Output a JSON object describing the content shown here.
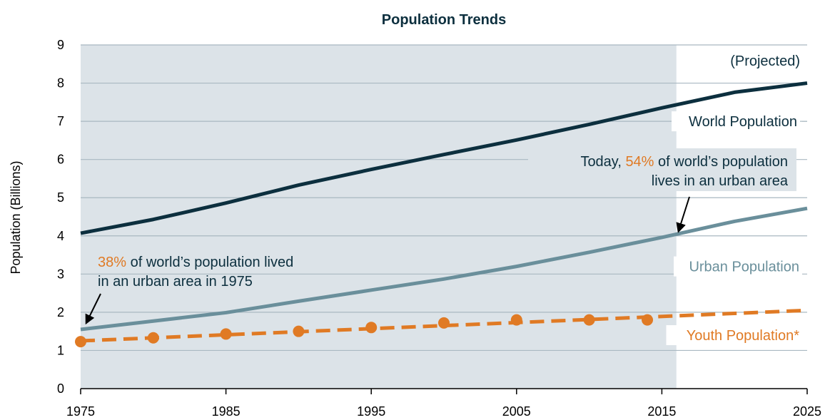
{
  "chart_data": {
    "type": "line",
    "title": "Population Trends",
    "xlabel": "",
    "ylabel": "Population (Billions)",
    "xlim": [
      1975,
      2025
    ],
    "ylim": [
      0,
      9
    ],
    "x_ticks": [
      "1975",
      "1985",
      "1995",
      "2005",
      "2015",
      "2025"
    ],
    "y_ticks": [
      "0",
      "1",
      "2",
      "3",
      "4",
      "5",
      "6",
      "7",
      "8",
      "9"
    ],
    "grid": "horizontal",
    "shaded_region": {
      "from": 1975,
      "to": 2016
    },
    "projected_label": "(Projected)",
    "series": [
      {
        "name": "World Population",
        "color": "#0c2f3e",
        "style": "solid",
        "x": [
          1975,
          1980,
          1985,
          1990,
          1995,
          2000,
          2005,
          2010,
          2015,
          2020,
          2025
        ],
        "values": [
          4.07,
          4.43,
          4.86,
          5.33,
          5.74,
          6.13,
          6.51,
          6.92,
          7.35,
          7.76,
          8.0
        ]
      },
      {
        "name": "Urban Population",
        "color": "#6a8f9b",
        "style": "solid",
        "x": [
          1975,
          1980,
          1985,
          1990,
          1995,
          2000,
          2005,
          2010,
          2015,
          2020,
          2025
        ],
        "values": [
          1.55,
          1.77,
          1.99,
          2.29,
          2.58,
          2.87,
          3.2,
          3.57,
          3.96,
          4.38,
          4.72
        ]
      },
      {
        "name": "Youth Population*",
        "color": "#e07a24",
        "style": "dashed",
        "x": [
          1975,
          2025
        ],
        "values": [
          1.25,
          2.05
        ],
        "markers": {
          "x": [
            1975,
            1980,
            1985,
            1990,
            1995,
            2000,
            2005,
            2010,
            2014
          ],
          "values": [
            1.23,
            1.33,
            1.43,
            1.5,
            1.6,
            1.72,
            1.8,
            1.8,
            1.8
          ]
        }
      }
    ],
    "annotations": [
      {
        "id": "today",
        "line1_pre": "Today, ",
        "line1_pct": "54%",
        "line1_post": " of world’s population",
        "line2": "lives in an urban area",
        "arrow_to": {
          "x": 2016,
          "y": 4.05
        }
      },
      {
        "id": "y1975",
        "line1_pct": "38%",
        "line1_post": " of world’s population lived",
        "line2": "in an urban area in 1975",
        "arrow_to": {
          "x": 1975,
          "y": 1.65
        }
      }
    ],
    "highlight_color": "#e07a24"
  }
}
